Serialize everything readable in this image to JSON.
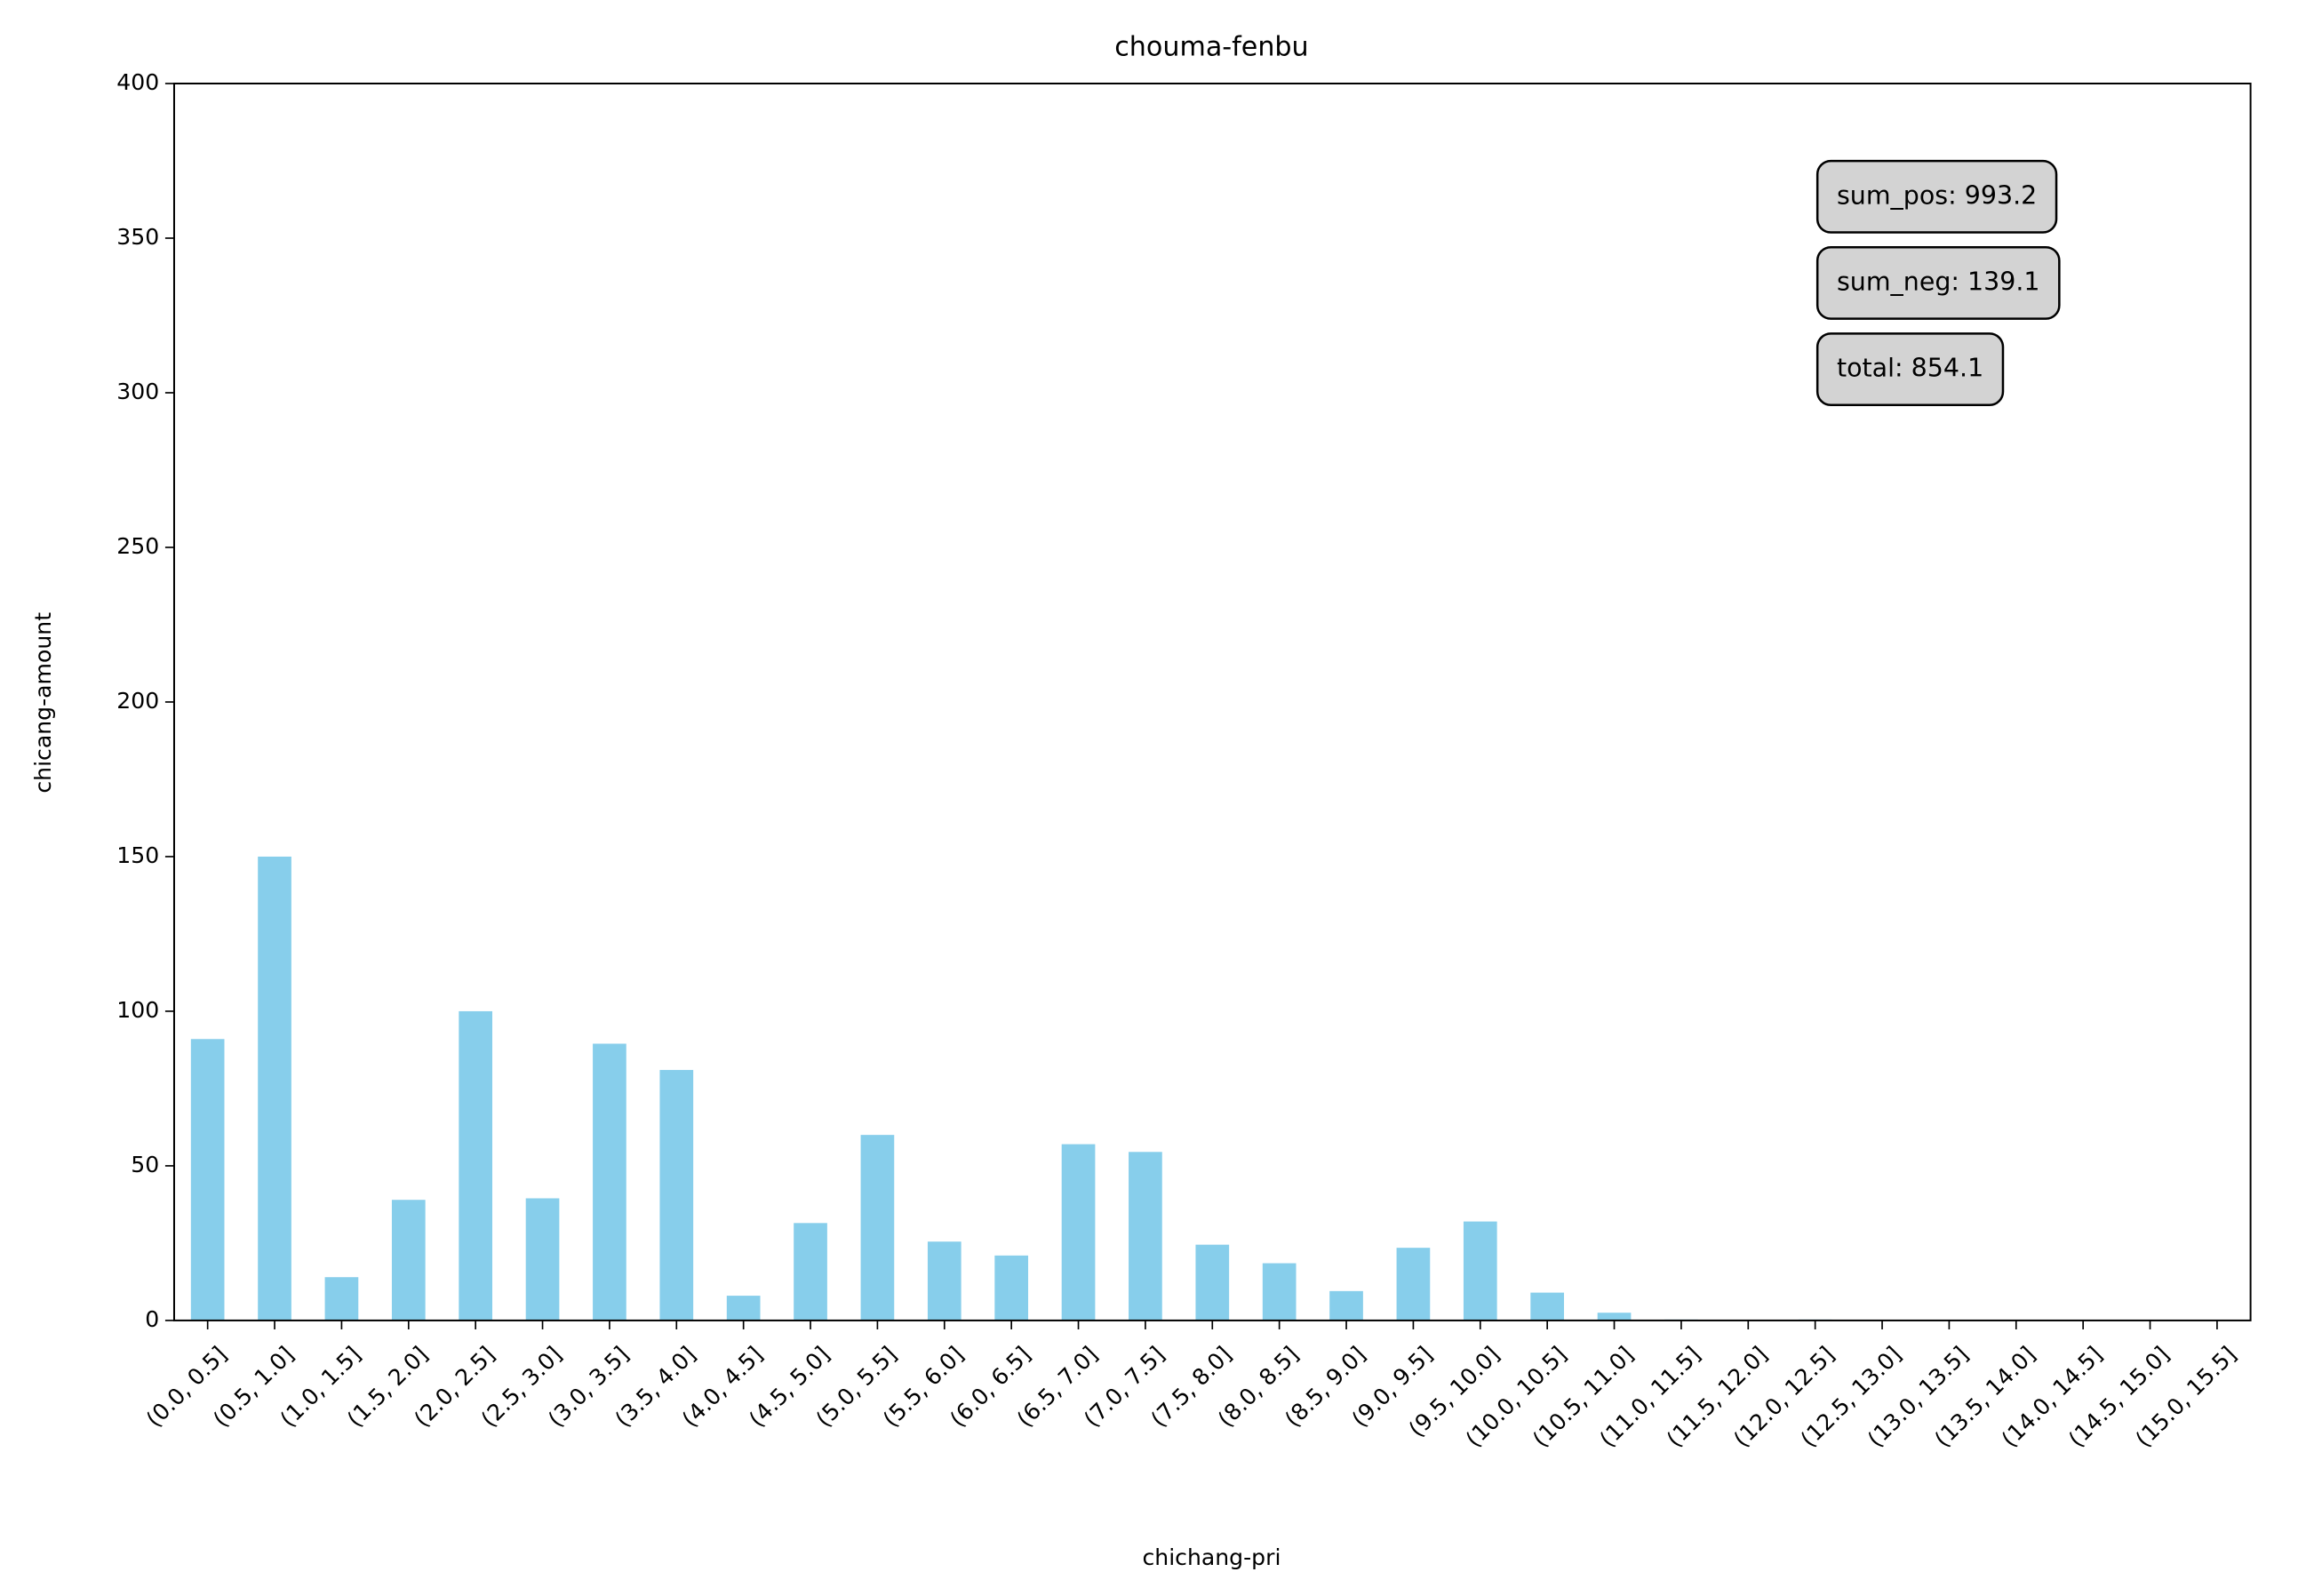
{
  "chart_data": {
    "type": "bar",
    "title": "chouma-fenbu",
    "x_label": "chichang-pri",
    "y_label": "chicang-amount",
    "categories": [
      "(0.0, 0.5]",
      "(0.5, 1.0]",
      "(1.0, 1.5]",
      "(1.5, 2.0]",
      "(2.0, 2.5]",
      "(2.5, 3.0]",
      "(3.0, 3.5]",
      "(3.5, 4.0]",
      "(4.0, 4.5]",
      "(4.5, 5.0]",
      "(5.0, 5.5]",
      "(5.5, 6.0]",
      "(6.0, 6.5]",
      "(6.5, 7.0]",
      "(7.0, 7.5]",
      "(7.5, 8.0]",
      "(8.0, 8.5]",
      "(8.5, 9.0]",
      "(9.0, 9.5]",
      "(9.5, 10.0]",
      "(10.0, 10.5]",
      "(10.5, 11.0]",
      "(11.0, 11.5]",
      "(11.5, 12.0]",
      "(12.0, 12.5]",
      "(12.5, 13.0]",
      "(13.0, 13.5]",
      "(13.5, 14.0]",
      "(14.0, 14.5]",
      "(14.5, 15.0]",
      "(15.0, 15.5]"
    ],
    "values": [
      91,
      150,
      14,
      39,
      100,
      39.5,
      89.5,
      81,
      8,
      31.5,
      60,
      25.5,
      21,
      57,
      54.5,
      24.5,
      18.5,
      9.5,
      23.5,
      32,
      9,
      2.5,
      0.3,
      0,
      0.3,
      0,
      0,
      0,
      0,
      0,
      0
    ],
    "color": "#87ceeb",
    "ylim": [
      0,
      400
    ],
    "yticks": [
      0,
      50,
      100,
      150,
      200,
      250,
      300,
      350,
      400
    ],
    "annotations": [
      "sum_pos: 993.2",
      "sum_neg: 139.1",
      "total: 854.1"
    ]
  }
}
